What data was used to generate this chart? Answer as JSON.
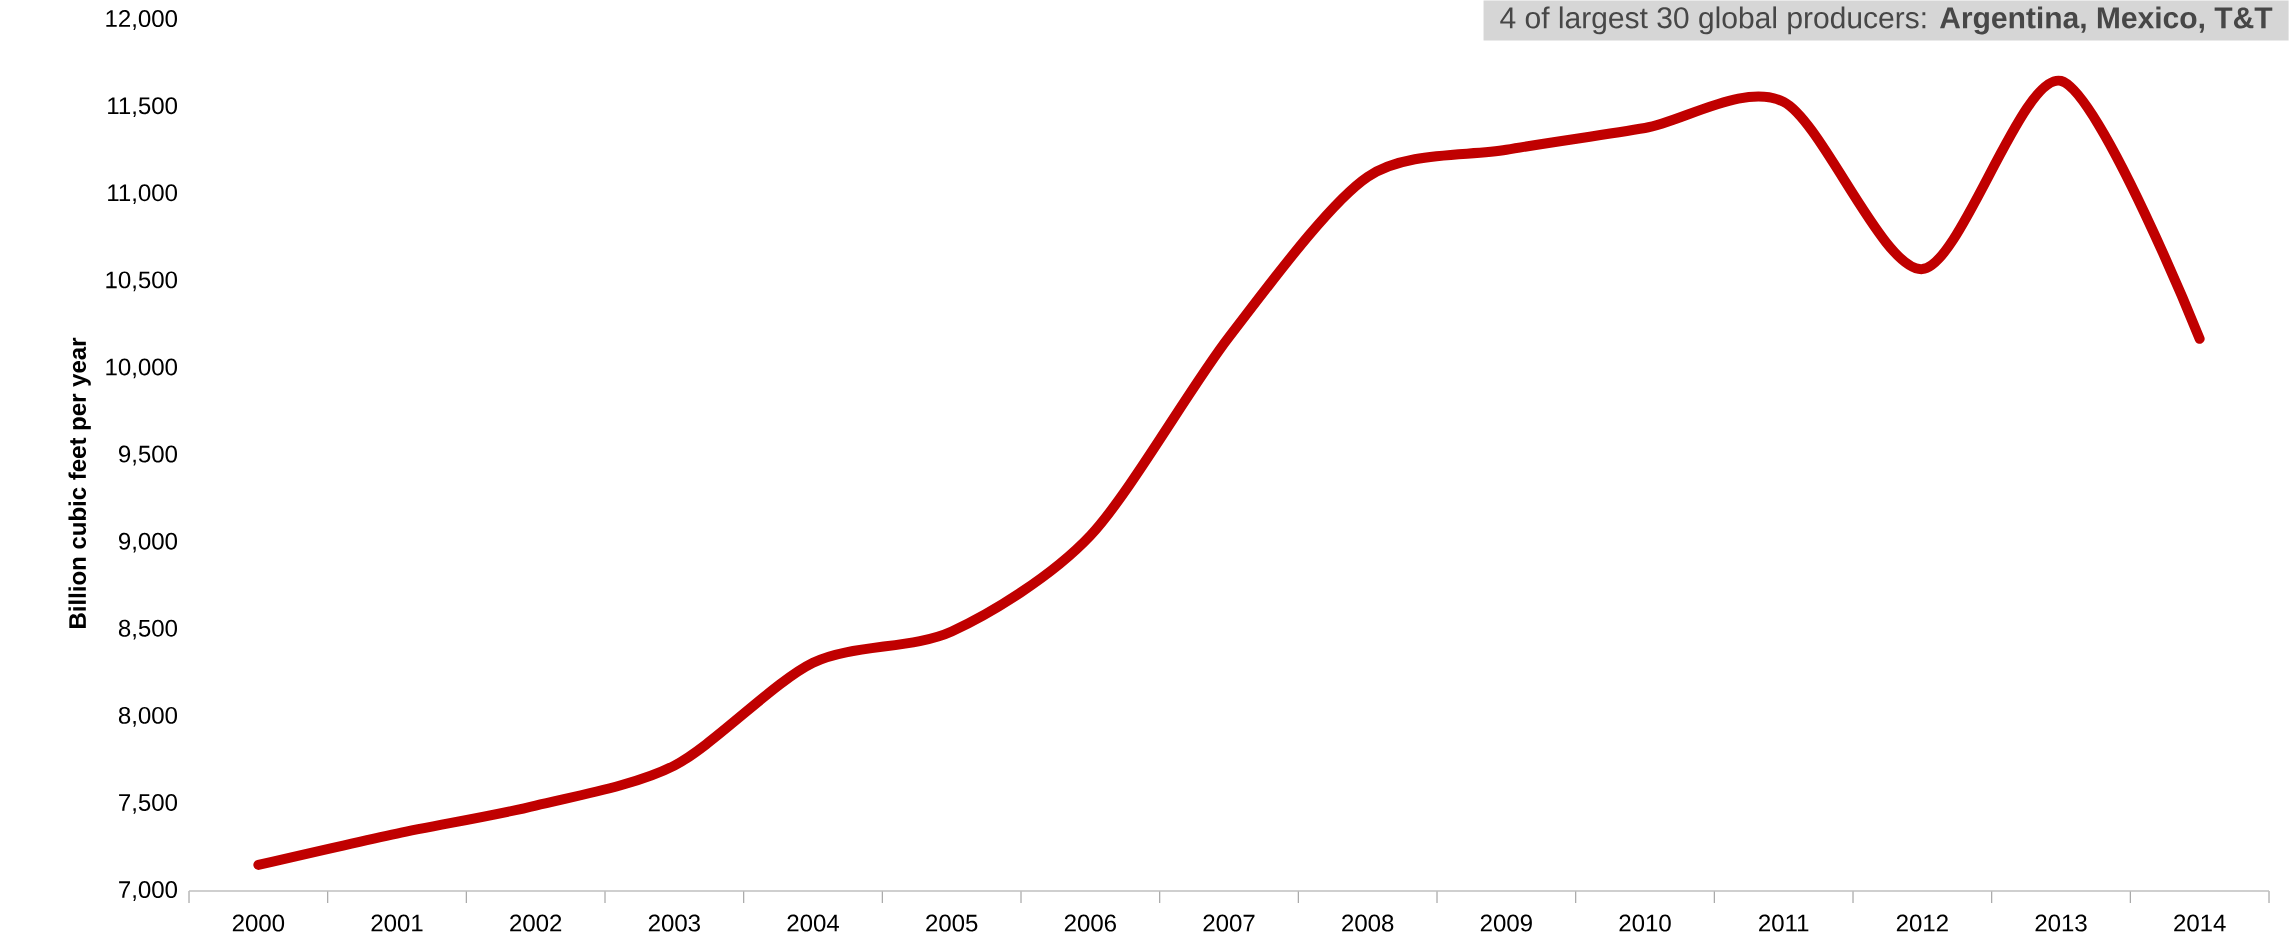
{
  "chart_data": {
    "type": "line",
    "title": "4 of largest 30 global producers: **Argentina, Mexico, T&T**",
    "ylabel": "Billion cubic feet per year",
    "categories": [
      "2000",
      "2001",
      "2002",
      "2003",
      "2004",
      "2005",
      "2006",
      "2007",
      "2008",
      "2009",
      "2010",
      "2011",
      "2012",
      "2013",
      "2014"
    ],
    "series": [
      {
        "color": "#c00000",
        "values": [
          7150,
          7330,
          7490,
          7720,
          8310,
          8490,
          9040,
          10180,
          11100,
          11255,
          11380,
          11530,
          10570,
          11650,
          10170
        ]
      }
    ],
    "ylim": [
      7000,
      12000
    ],
    "yticks": [
      {
        "value": 7000,
        "label": "7,000"
      },
      {
        "value": 7500,
        "label": "7,500"
      },
      {
        "value": 8000,
        "label": "8,000"
      },
      {
        "value": 8500,
        "label": "8,500"
      },
      {
        "value": 9000,
        "label": "9,000"
      },
      {
        "value": 9500,
        "label": "9,500"
      },
      {
        "value": 10000,
        "label": "10,000"
      },
      {
        "value": 10500,
        "label": "10,500"
      },
      {
        "value": 11000,
        "label": "11,000"
      },
      {
        "value": 11500,
        "label": "11,500"
      },
      {
        "value": 12000,
        "label": "12,000"
      }
    ],
    "grid": false,
    "marker": "none",
    "line_style": "solid"
  }
}
